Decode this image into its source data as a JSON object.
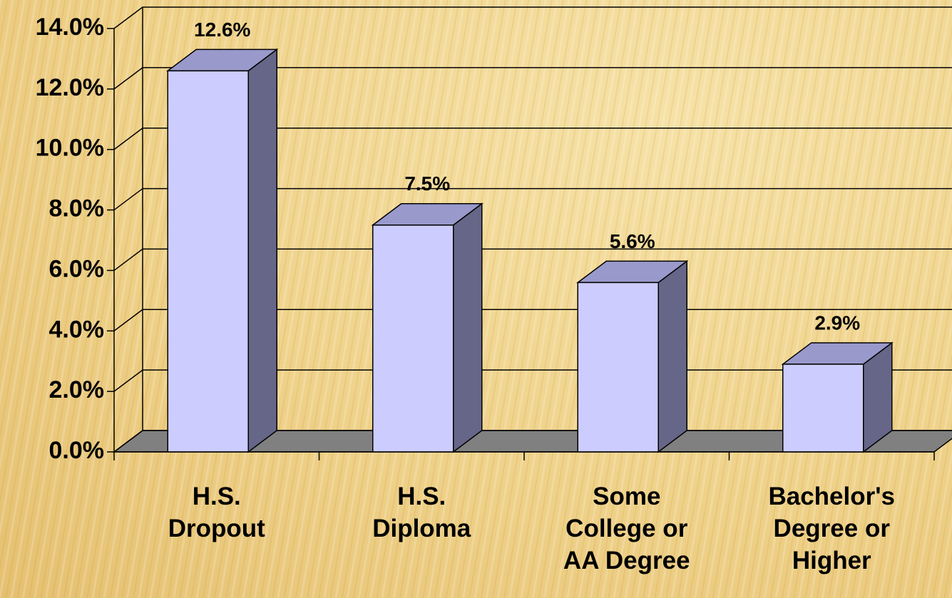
{
  "chart_data": {
    "type": "bar3d",
    "categories": [
      "H.S.\nDropout",
      "H.S.\nDiploma",
      "Some\nCollege or\nAA Degree",
      "Bachelor's\nDegree or\nHigher"
    ],
    "values": [
      12.6,
      7.5,
      5.6,
      2.9
    ],
    "value_labels": [
      "12.6%",
      "7.5%",
      "5.6%",
      "2.9%"
    ],
    "color": "#ccccff",
    "ylim": [
      0,
      14
    ],
    "yticks": [
      {
        "value": 0,
        "label": "0.0%"
      },
      {
        "value": 2,
        "label": "2.0%"
      },
      {
        "value": 4,
        "label": "4.0%"
      },
      {
        "value": 6,
        "label": "6.0%"
      },
      {
        "value": 8,
        "label": "8.0%"
      },
      {
        "value": 10,
        "label": "10.0%"
      },
      {
        "value": 12,
        "label": "12.0%"
      },
      {
        "value": 14,
        "label": "14.0%"
      }
    ],
    "grid": true
  }
}
